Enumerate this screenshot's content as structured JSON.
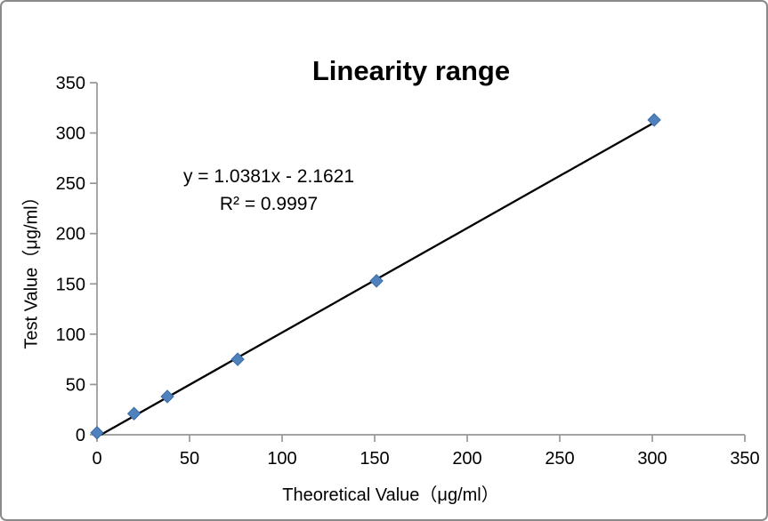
{
  "window": {
    "background": "#ffffff",
    "border_color": "#8a8a8a"
  },
  "chart_data": {
    "type": "scatter",
    "title": "Linearity range",
    "xlabel": "Theoretical Value（μg/ml）",
    "ylabel": "Test Value（μg/ml）",
    "x": [
      0,
      20,
      38,
      76,
      151,
      301
    ],
    "y": [
      2,
      21,
      38,
      75,
      153,
      313
    ],
    "xlim": [
      0,
      350
    ],
    "ylim": [
      0,
      350
    ],
    "xticks": [
      0,
      50,
      100,
      150,
      200,
      250,
      300,
      350
    ],
    "yticks": [
      0,
      50,
      100,
      150,
      200,
      250,
      300,
      350
    ],
    "grid": false,
    "legend": "none",
    "annotation": {
      "equation": "y = 1.0381x - 2.1621",
      "r_squared": "R² = 0.9997"
    },
    "trendline": {
      "slope": 1.0381,
      "intercept": -2.1621,
      "x_start": 2.08,
      "x_end": 302,
      "color": "#000000",
      "width": 2.3
    },
    "colors": {
      "marker": "#4F81BD",
      "marker_edge": "#3d6ca8",
      "axis": "#969696",
      "tick_label": "#000000"
    },
    "marker": {
      "shape": "diamond",
      "size": 14
    }
  }
}
